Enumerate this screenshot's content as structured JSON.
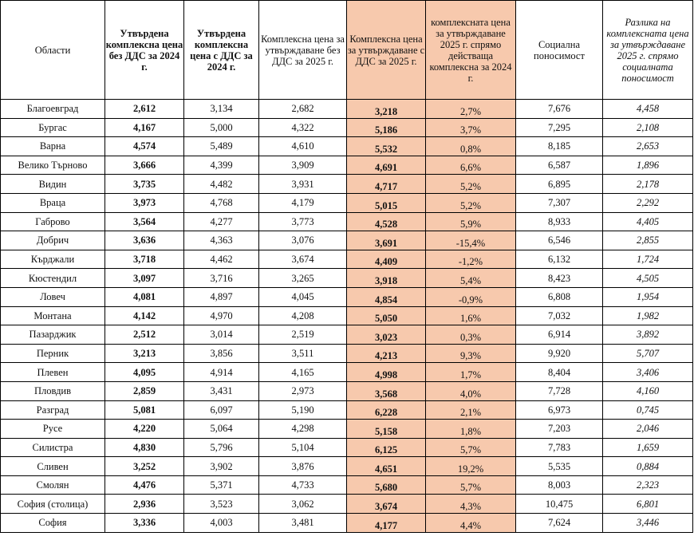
{
  "headers": [
    "Области",
    "Утвърдена комплексна цена без ДДС за 2024 г.",
    "Утвърдена комплексна цена с ДДС за 2024 г.",
    "Комплексна цена за утвърждаване без ДДС за 2025 г.",
    "Комплексна цена за утвърждаване с ДДС за 2025 г.",
    "комплексната цена за утвърждаване 2025 г. спрямо действаща комплексна за 2024 г.",
    "Социална поносимост",
    "Разлика на комплексната цена за утвърждаване 2025 г. спрямо социалната поносимост"
  ],
  "rows": [
    [
      "Благоевград",
      "2,612",
      "3,134",
      "2,682",
      "3,218",
      "2,7%",
      "7,676",
      "4,458"
    ],
    [
      "Бургас",
      "4,167",
      "5,000",
      "4,322",
      "5,186",
      "3,7%",
      "7,295",
      "2,108"
    ],
    [
      "Варна",
      "4,574",
      "5,489",
      "4,610",
      "5,532",
      "0,8%",
      "8,185",
      "2,653"
    ],
    [
      "Велико Търново",
      "3,666",
      "4,399",
      "3,909",
      "4,691",
      "6,6%",
      "6,587",
      "1,896"
    ],
    [
      "Видин",
      "3,735",
      "4,482",
      "3,931",
      "4,717",
      "5,2%",
      "6,895",
      "2,178"
    ],
    [
      "Враца",
      "3,973",
      "4,768",
      "4,179",
      "5,015",
      "5,2%",
      "7,307",
      "2,292"
    ],
    [
      "Габрово",
      "3,564",
      "4,277",
      "3,773",
      "4,528",
      "5,9%",
      "8,933",
      "4,405"
    ],
    [
      "Добрич",
      "3,636",
      "4,363",
      "3,076",
      "3,691",
      "-15,4%",
      "6,546",
      "2,855"
    ],
    [
      "Кърджали",
      "3,718",
      "4,462",
      "3,674",
      "4,409",
      "-1,2%",
      "6,132",
      "1,724"
    ],
    [
      "Кюстендил",
      "3,097",
      "3,716",
      "3,265",
      "3,918",
      "5,4%",
      "8,423",
      "4,505"
    ],
    [
      "Ловеч",
      "4,081",
      "4,897",
      "4,045",
      "4,854",
      "-0,9%",
      "6,808",
      "1,954"
    ],
    [
      "Монтана",
      "4,142",
      "4,970",
      "4,208",
      "5,050",
      "1,6%",
      "7,032",
      "1,982"
    ],
    [
      "Пазарджик",
      "2,512",
      "3,014",
      "2,519",
      "3,023",
      "0,3%",
      "6,914",
      "3,892"
    ],
    [
      "Перник",
      "3,213",
      "3,856",
      "3,511",
      "4,213",
      "9,3%",
      "9,920",
      "5,707"
    ],
    [
      "Плевен",
      "4,095",
      "4,914",
      "4,165",
      "4,998",
      "1,7%",
      "8,404",
      "3,406"
    ],
    [
      "Пловдив",
      "2,859",
      "3,431",
      "2,973",
      "3,568",
      "4,0%",
      "7,728",
      "4,160"
    ],
    [
      "Разград",
      "5,081",
      "6,097",
      "5,190",
      "6,228",
      "2,1%",
      "6,973",
      "0,745"
    ],
    [
      "Русе",
      "4,220",
      "5,064",
      "4,298",
      "5,158",
      "1,8%",
      "7,203",
      "2,046"
    ],
    [
      "Силистра",
      "4,830",
      "5,796",
      "5,104",
      "6,125",
      "5,7%",
      "7,783",
      "1,659"
    ],
    [
      "Сливен",
      "3,252",
      "3,902",
      "3,876",
      "4,651",
      "19,2%",
      "5,535",
      "0,884"
    ],
    [
      "Смолян",
      "4,476",
      "5,371",
      "4,733",
      "5,680",
      "5,7%",
      "8,003",
      "2,323"
    ],
    [
      "София (столица)",
      "2,936",
      "3,523",
      "3,062",
      "3,674",
      "4,3%",
      "10,475",
      "6,801"
    ],
    [
      "София",
      "3,336",
      "4,003",
      "3,481",
      "4,177",
      "4,4%",
      "7,624",
      "3,446"
    ]
  ],
  "colors": {
    "highlight": "#f7c9ad",
    "border": "#000000"
  }
}
